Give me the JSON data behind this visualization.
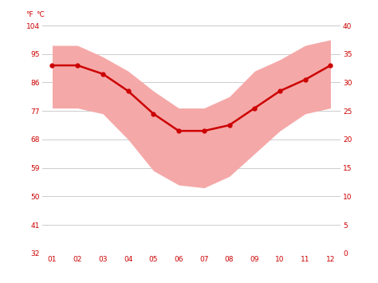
{
  "months": [
    1,
    2,
    3,
    4,
    5,
    6,
    7,
    8,
    9,
    10,
    11,
    12
  ],
  "avg_temp_c": [
    33.0,
    33.0,
    31.5,
    28.5,
    24.5,
    21.5,
    21.5,
    22.5,
    25.5,
    28.5,
    30.5,
    33.0
  ],
  "band_upper_c": [
    36.5,
    36.5,
    34.5,
    32.0,
    28.5,
    25.5,
    25.5,
    27.5,
    32.0,
    34.0,
    36.5,
    37.5
  ],
  "band_lower_c": [
    25.5,
    25.5,
    24.5,
    20.0,
    14.5,
    12.0,
    11.5,
    13.5,
    17.5,
    21.5,
    24.5,
    25.5
  ],
  "line_color": "#cc0000",
  "band_color": "#f5a8a8",
  "background_color": "#ffffff",
  "grid_color": "#cccccc",
  "tick_color": "#cc0000",
  "ylabel_left": "°F",
  "ylabel_right": "°C",
  "ylim_c": [
    0,
    40
  ],
  "yticks_c": [
    0,
    5,
    10,
    15,
    20,
    25,
    30,
    35,
    40
  ],
  "yticks_f": [
    32,
    41,
    50,
    59,
    68,
    77,
    86,
    95,
    104
  ],
  "month_labels": [
    "01",
    "02",
    "03",
    "04",
    "05",
    "06",
    "07",
    "08",
    "09",
    "10",
    "11",
    "12"
  ]
}
